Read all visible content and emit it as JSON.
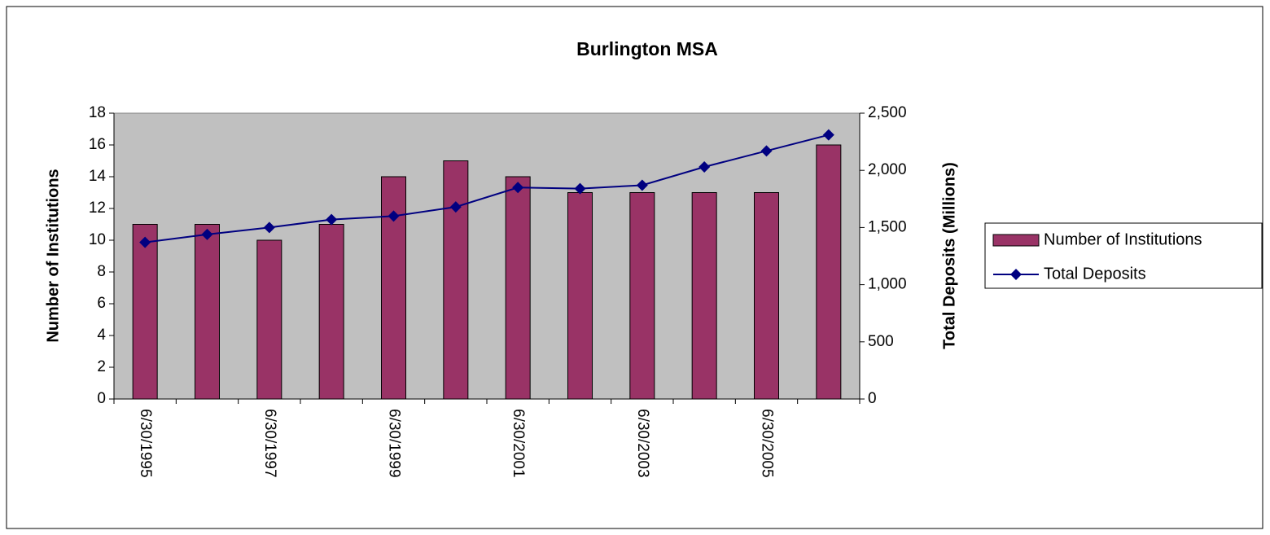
{
  "chart_data": {
    "type": "bar",
    "title": "Burlington MSA",
    "ylabel": "Number of Institutions",
    "y2label": "Total Deposits (Millions)",
    "categories": [
      "6/30/1995",
      null,
      "6/30/1997",
      null,
      "6/30/1999",
      null,
      "6/30/2001",
      null,
      "6/30/2003",
      null,
      "6/30/2005",
      null
    ],
    "series": [
      {
        "name": "Number of Institutions",
        "type": "bar",
        "color": "#993366",
        "values": [
          11,
          11,
          10,
          11,
          14,
          15,
          14,
          13,
          13,
          13,
          13,
          16
        ]
      },
      {
        "name": "Total Deposits",
        "type": "line",
        "color": "#000080",
        "axis": "y2",
        "values": [
          1370,
          1440,
          1500,
          1570,
          1600,
          1680,
          1850,
          1840,
          1870,
          2030,
          2170,
          2310
        ]
      }
    ],
    "ylim": [
      0,
      18
    ],
    "yticks": [
      0,
      2,
      4,
      6,
      8,
      10,
      12,
      14,
      16,
      18
    ],
    "y2lim": [
      0,
      2500
    ],
    "y2ticks": [
      0,
      500,
      {
        "value": 1000,
        "label": "1,000"
      },
      {
        "value": 1500,
        "label": "1,500"
      },
      {
        "value": 2000,
        "label": "2,000"
      },
      {
        "value": 2500,
        "label": "2,500"
      }
    ],
    "legend": "right",
    "background": "#c0c0c0"
  }
}
